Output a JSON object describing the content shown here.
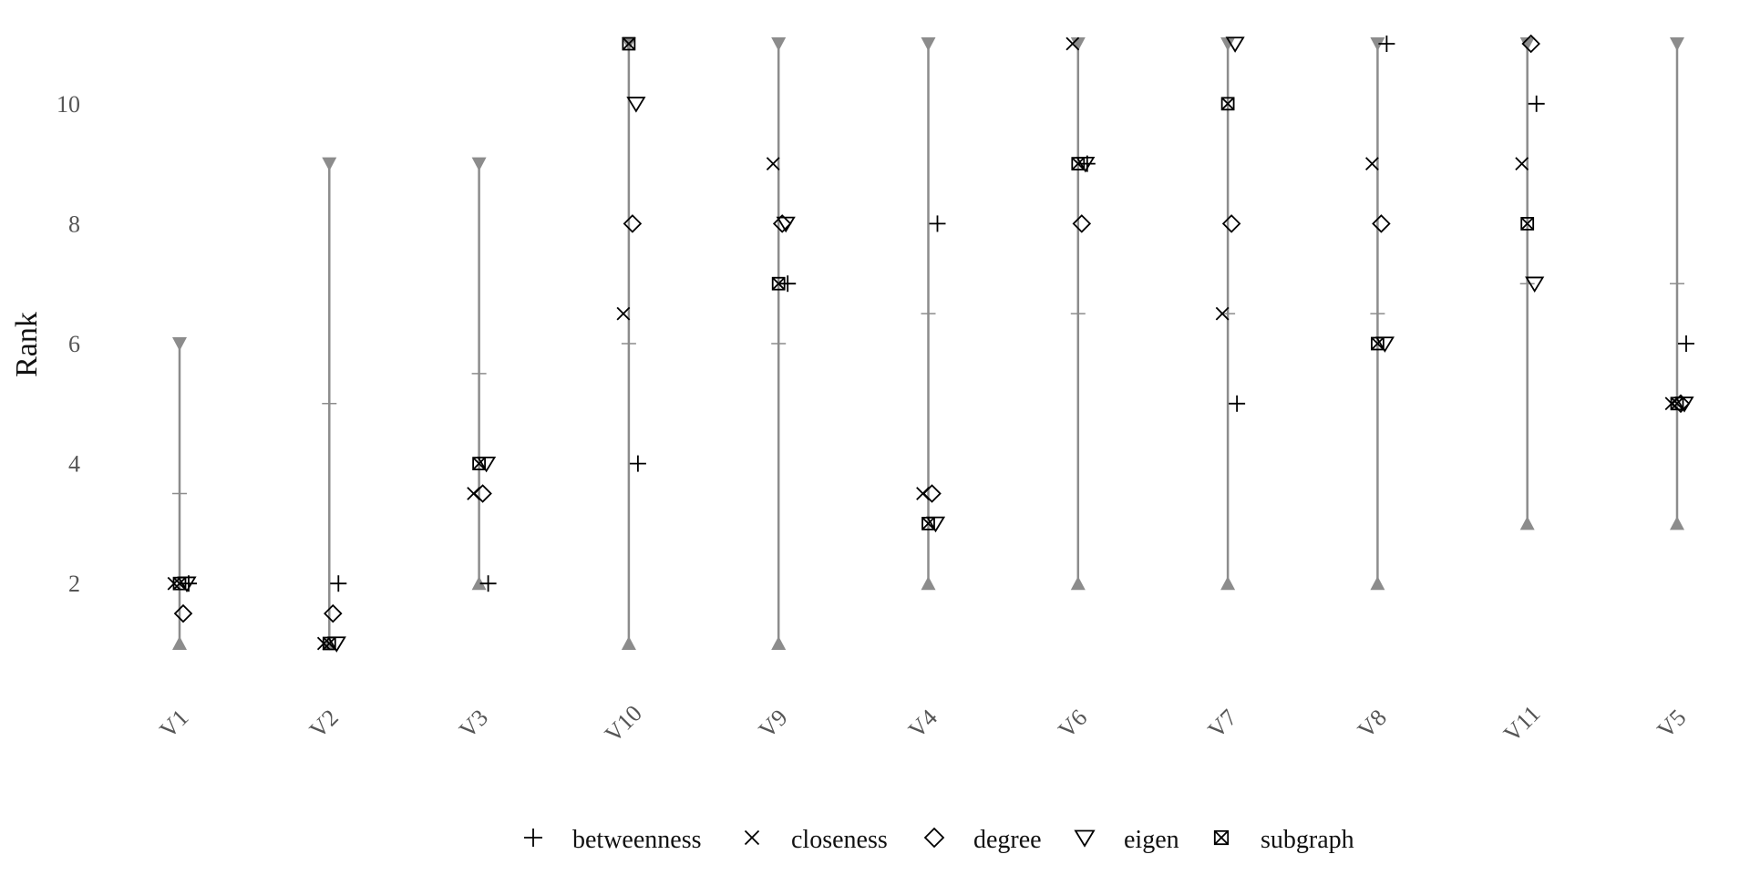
{
  "chart_data": {
    "type": "scatter",
    "title": "",
    "xlabel": "",
    "ylabel": "Rank",
    "ylim": [
      0.5,
      11.4
    ],
    "y_ticks": [
      2,
      4,
      6,
      8,
      10
    ],
    "grid": false,
    "legend_position": "bottom",
    "categories": [
      "V1",
      "V2",
      "V3",
      "V10",
      "V9",
      "V4",
      "V6",
      "V7",
      "V8",
      "V11",
      "V5"
    ],
    "ranges": [
      {
        "min": 1,
        "mid": 3.5,
        "max": 6
      },
      {
        "min": 1,
        "mid": 5,
        "max": 9
      },
      {
        "min": 2,
        "mid": 5.5,
        "max": 9
      },
      {
        "min": 1,
        "mid": 6,
        "max": 11
      },
      {
        "min": 1,
        "mid": 6,
        "max": 11
      },
      {
        "min": 2,
        "mid": 6.5,
        "max": 11
      },
      {
        "min": 2,
        "mid": 6.5,
        "max": 11
      },
      {
        "min": 2,
        "mid": 6.5,
        "max": 11
      },
      {
        "min": 2,
        "mid": 6.5,
        "max": 11
      },
      {
        "min": 3,
        "mid": 7,
        "max": 11
      },
      {
        "min": 3,
        "mid": 7,
        "max": 11
      }
    ],
    "series": [
      {
        "name": "betweenness",
        "marker": "plus",
        "values": [
          2,
          2,
          2,
          4,
          7,
          8,
          9,
          5,
          11,
          10,
          6
        ]
      },
      {
        "name": "closeness",
        "marker": "cross",
        "values": [
          2,
          1,
          3.5,
          6.5,
          9,
          3.5,
          11,
          6.5,
          9,
          9,
          5
        ]
      },
      {
        "name": "degree",
        "marker": "diamond",
        "values": [
          1.5,
          1.5,
          3.5,
          8,
          8,
          3.5,
          8,
          8,
          8,
          11,
          5
        ]
      },
      {
        "name": "eigen",
        "marker": "triangle-down",
        "values": [
          2,
          1,
          4,
          10,
          8,
          3,
          9,
          11,
          6,
          7,
          5
        ]
      },
      {
        "name": "subgraph",
        "marker": "boxed-cross",
        "values": [
          2,
          1,
          4,
          11,
          7,
          3,
          9,
          10,
          6,
          8,
          5
        ]
      }
    ],
    "colors": {
      "range_line": "#8c8c8c",
      "marker": "#000000",
      "tick_text": "#555555"
    }
  }
}
